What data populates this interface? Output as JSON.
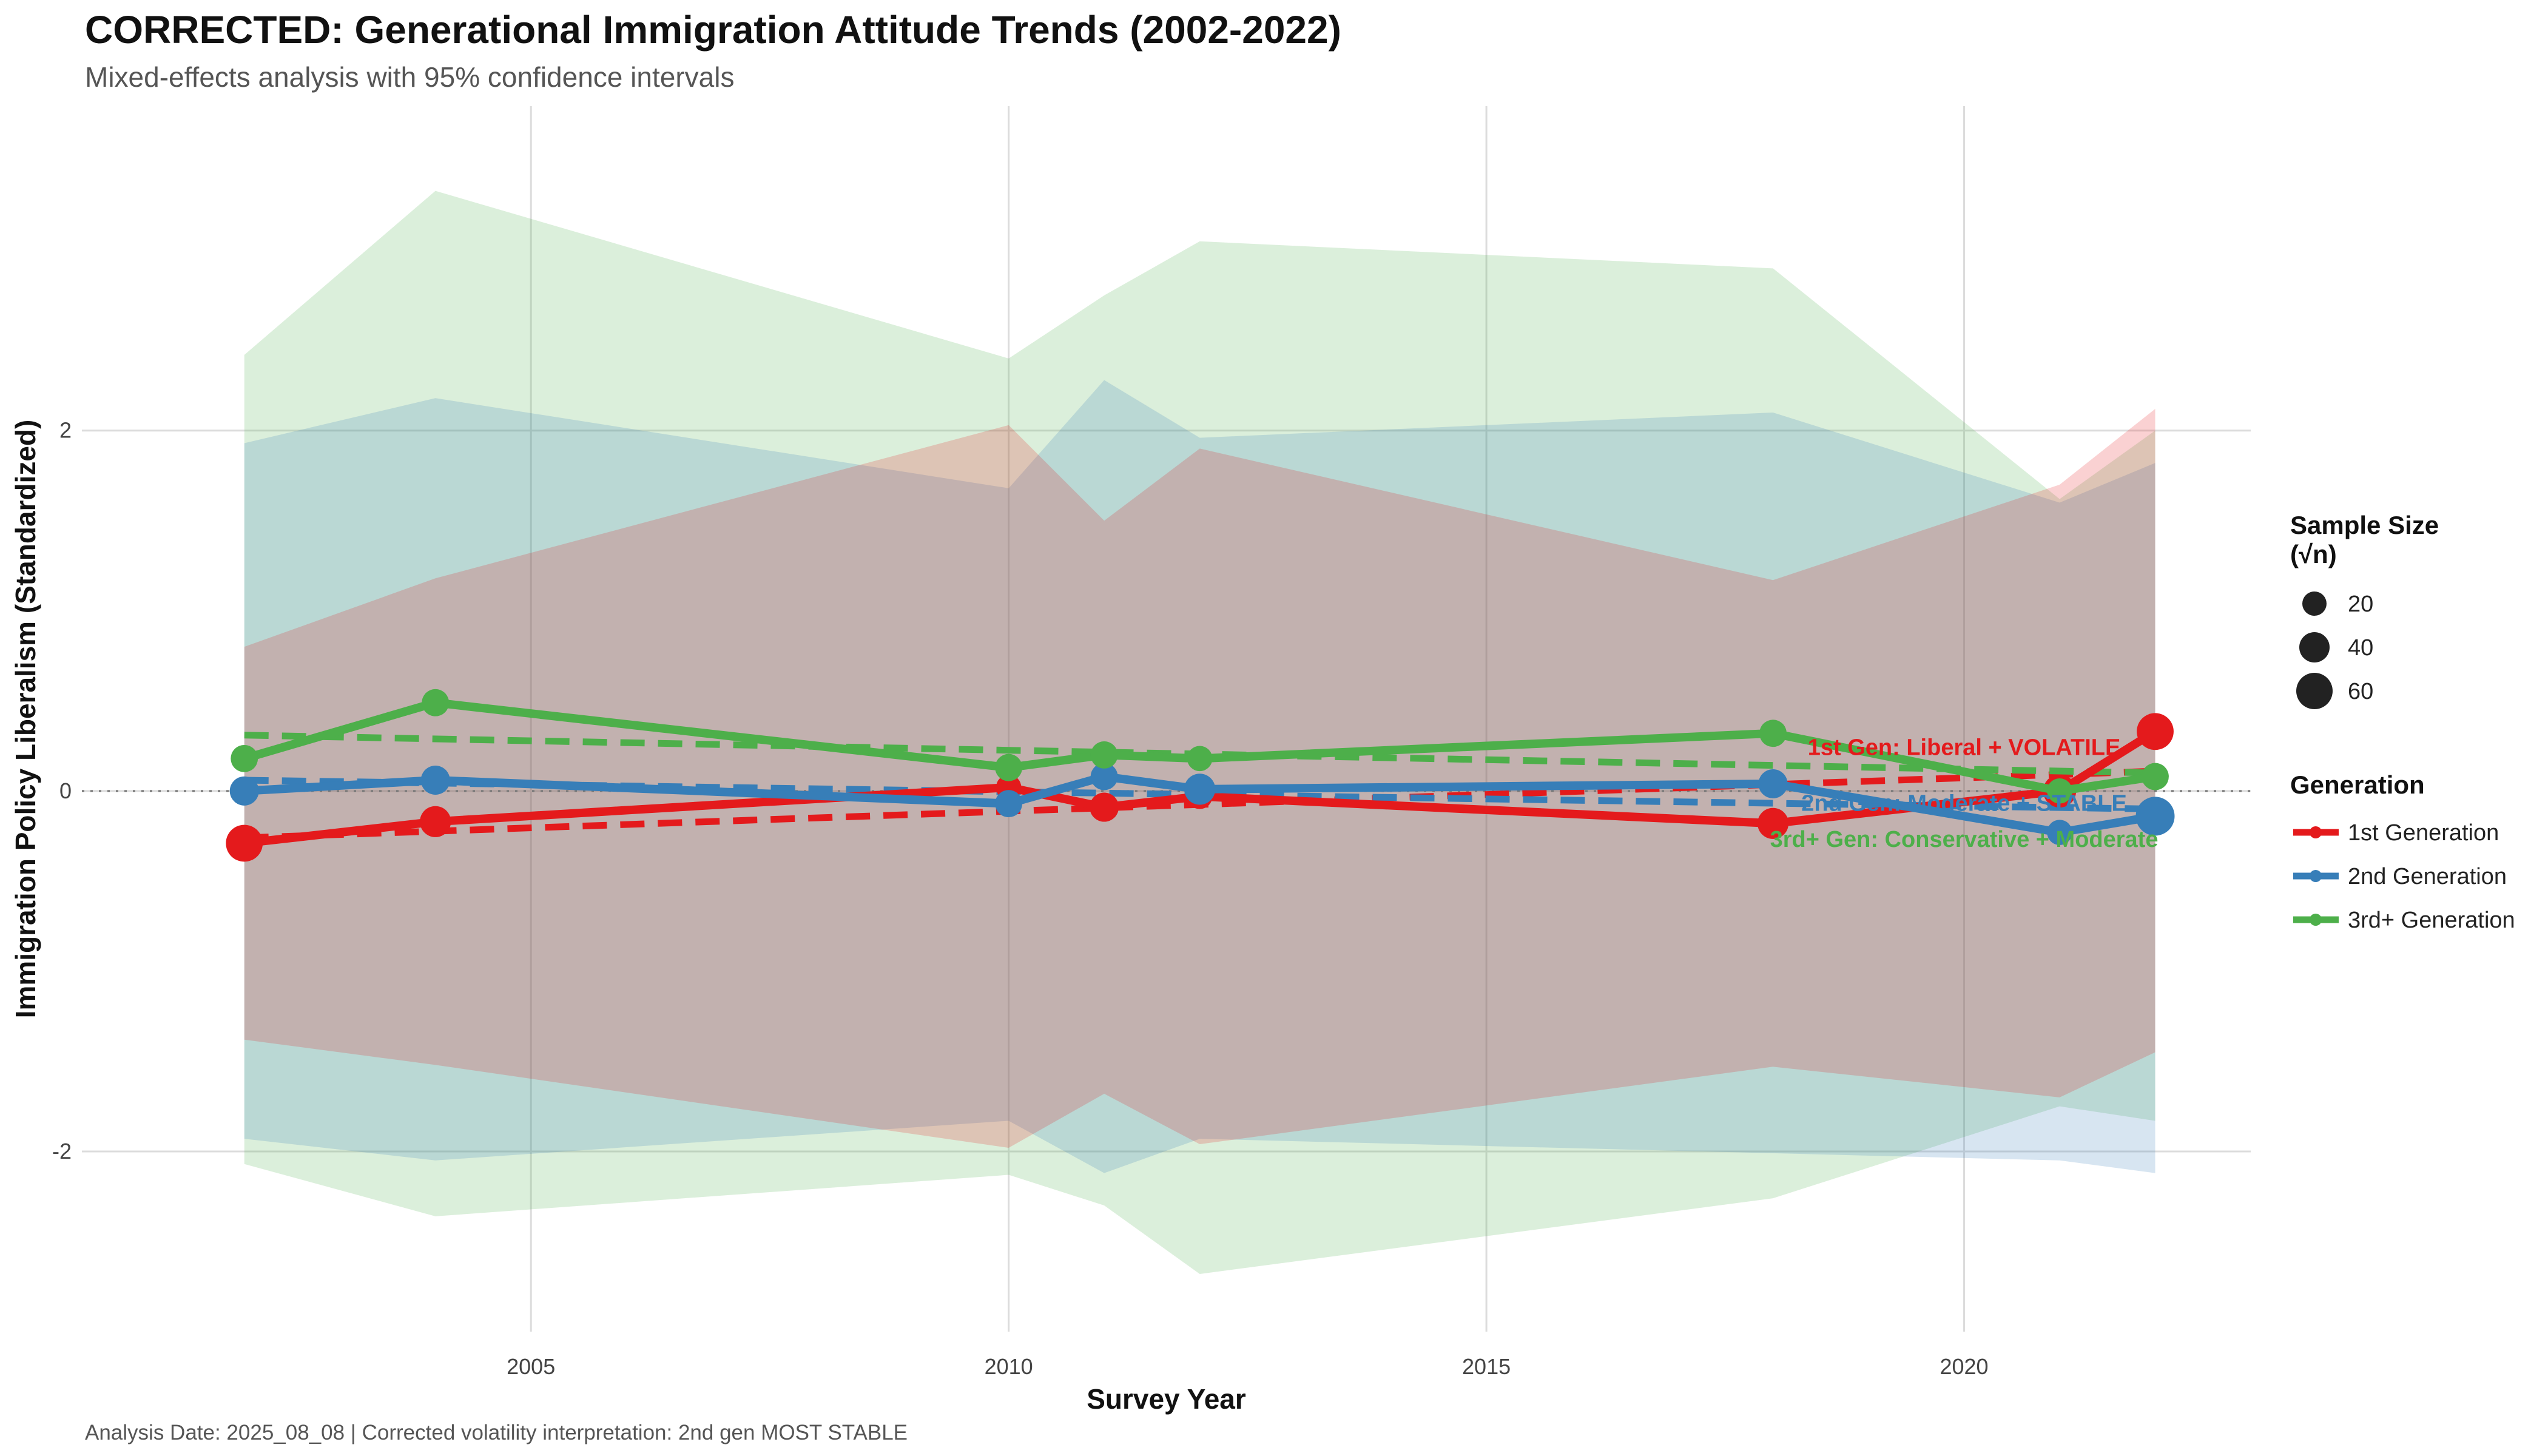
{
  "chart_data": {
    "type": "line",
    "title": "CORRECTED: Generational Immigration Attitude Trends (2002-2022)",
    "subtitle": "Mixed-effects analysis with 95% confidence intervals",
    "xlabel": "Survey Year",
    "ylabel": "Immigration Policy Liberalism (Standardized)",
    "caption": "Analysis Date: 2025_08_08 | Corrected volatility interpretation: 2nd gen MOST STABLE",
    "xlim": [
      2000.3,
      2023
    ],
    "ylim": [
      -3,
      3.8
    ],
    "x_ticks": [
      2005,
      2010,
      2015,
      2020
    ],
    "y_ticks": [
      -2,
      0,
      2
    ],
    "reference_line_y": 0,
    "grid": true,
    "legend_placement": "right",
    "size_legend": {
      "title": "Sample Size\n(√n)",
      "values": [
        20,
        40,
        60
      ]
    },
    "color_legend_title": "Generation",
    "series": [
      {
        "name": "1st Generation",
        "color": "#e41a1c",
        "x": [
          2002,
          2004,
          2010,
          2011,
          2012,
          2018,
          2021,
          2022
        ],
        "y": [
          -0.29,
          -0.17,
          0.02,
          -0.09,
          -0.03,
          -0.18,
          0.0,
          0.33
        ],
        "size": [
          38,
          32,
          26,
          30,
          26,
          32,
          34,
          38
        ],
        "ci_upper": [
          0.8,
          1.18,
          2.03,
          1.5,
          1.9,
          1.17,
          1.7,
          2.12
        ],
        "ci_lower": [
          -1.38,
          -1.52,
          -1.98,
          -1.68,
          -1.96,
          -1.53,
          -1.7,
          -1.45
        ],
        "trend": [
          [
            2002,
            -0.26
          ],
          [
            2022,
            0.11
          ]
        ],
        "annotation": "1st Gen: Liberal + VOLATILE",
        "annotation_at": [
          2020,
          0.2
        ]
      },
      {
        "name": "2nd Generation",
        "color": "#377eb8",
        "x": [
          2002,
          2004,
          2010,
          2011,
          2012,
          2018,
          2021,
          2022
        ],
        "y": [
          0.0,
          0.06,
          -0.07,
          0.08,
          0.01,
          0.04,
          -0.23,
          -0.14
        ],
        "size": [
          30,
          30,
          28,
          28,
          32,
          30,
          26,
          40
        ],
        "ci_upper": [
          1.93,
          2.18,
          1.68,
          2.28,
          1.96,
          2.1,
          1.6,
          1.82
        ],
        "ci_lower": [
          -1.93,
          -2.05,
          -1.83,
          -2.12,
          -1.93,
          -2.01,
          -2.05,
          -2.12
        ],
        "trend": [
          [
            2002,
            0.06
          ],
          [
            2022,
            -0.1
          ]
        ],
        "annotation": "2nd Gen: Moderate + STABLE",
        "annotation_at": [
          2020,
          -0.11
        ]
      },
      {
        "name": "3rd+ Generation",
        "color": "#4daf4a",
        "x": [
          2002,
          2004,
          2010,
          2011,
          2012,
          2018,
          2021,
          2022
        ],
        "y": [
          0.18,
          0.49,
          0.13,
          0.2,
          0.18,
          0.32,
          0.0,
          0.08
        ],
        "size": [
          28,
          28,
          28,
          28,
          26,
          28,
          26,
          28
        ],
        "ci_upper": [
          2.42,
          3.33,
          2.4,
          2.75,
          3.05,
          2.9,
          1.62,
          2.0
        ],
        "ci_lower": [
          -2.07,
          -2.36,
          -2.13,
          -2.3,
          -2.68,
          -2.26,
          -1.75,
          -1.83
        ],
        "trend": [
          [
            2002,
            0.31
          ],
          [
            2022,
            0.1
          ]
        ],
        "annotation": "3rd+ Gen: Conservative + Moderate",
        "annotation_at": [
          2020,
          -0.31
        ]
      }
    ]
  }
}
